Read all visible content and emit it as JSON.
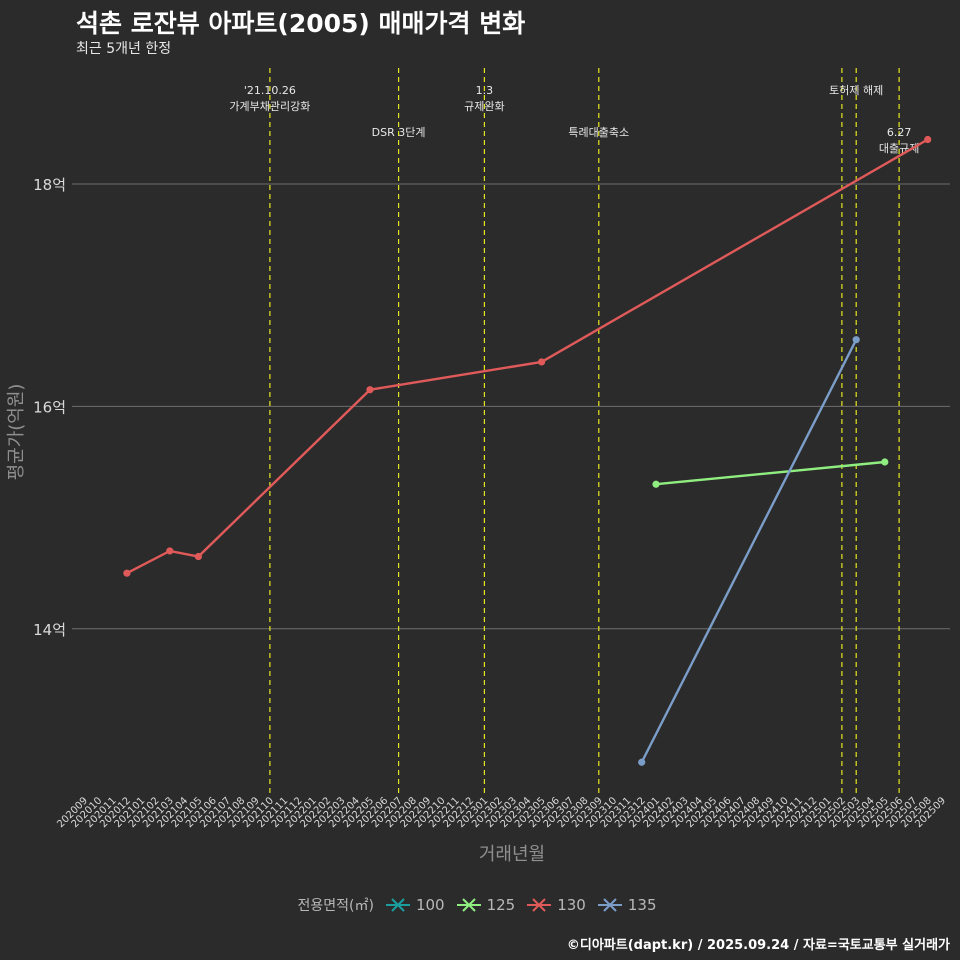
{
  "title": "석촌 로잔뷰 아파트(2005) 매매가격 변화",
  "subtitle": "최근 5개년 한정",
  "caption": "©디아파트(dapt.kr) / 2025.09.24 / 자료=국토교통부 실거래가",
  "legend": {
    "title": "전용면적(㎡)",
    "items": [
      {
        "label": "100",
        "color": "#1b9e9e"
      },
      {
        "label": "125",
        "color": "#90ee80"
      },
      {
        "label": "130",
        "color": "#e05a5a"
      },
      {
        "label": "135",
        "color": "#7b9ec9"
      }
    ]
  },
  "chart_data": {
    "type": "line",
    "xlabel": "거래년월",
    "ylabel": "평균가(억원)",
    "ylim": [
      12.6,
      19.2
    ],
    "yticks": [
      14,
      16,
      18
    ],
    "ytick_labels": [
      "14억",
      "16억",
      "18억"
    ],
    "x_categories": [
      "202009",
      "202010",
      "202011",
      "202012",
      "202101",
      "202102",
      "202103",
      "202104",
      "202105",
      "202106",
      "202107",
      "202108",
      "202109",
      "202110",
      "202111",
      "202112",
      "202201",
      "202202",
      "202203",
      "202204",
      "202205",
      "202206",
      "202207",
      "202208",
      "202209",
      "202210",
      "202211",
      "202212",
      "202301",
      "202302",
      "202303",
      "202304",
      "202305",
      "202306",
      "202307",
      "202308",
      "202309",
      "202310",
      "202311",
      "202312",
      "202401",
      "202402",
      "202403",
      "202404",
      "202405",
      "202406",
      "202407",
      "202408",
      "202409",
      "202410",
      "202411",
      "202412",
      "202501",
      "202502",
      "202503",
      "202504",
      "202505",
      "202506",
      "202507",
      "202508",
      "202509"
    ],
    "series": [
      {
        "name": "125",
        "color": "#90ee80",
        "points": [
          {
            "x": "202401",
            "y": 15.3
          },
          {
            "x": "202505",
            "y": 15.5
          }
        ]
      },
      {
        "name": "130",
        "color": "#e05a5a",
        "points": [
          {
            "x": "202012",
            "y": 14.5
          },
          {
            "x": "202103",
            "y": 14.7
          },
          {
            "x": "202105",
            "y": 14.65
          },
          {
            "x": "202205",
            "y": 16.15
          },
          {
            "x": "202305",
            "y": 16.4
          },
          {
            "x": "202508",
            "y": 18.4
          }
        ]
      },
      {
        "name": "135",
        "color": "#7b9ec9",
        "points": [
          {
            "x": "202312",
            "y": 12.8
          },
          {
            "x": "202503",
            "y": 16.6
          }
        ]
      }
    ],
    "events": [
      {
        "x": "202110",
        "lines": [
          "'21.10.26",
          "가계부채관리강화"
        ],
        "row": 1
      },
      {
        "x": "202207",
        "lines": [
          "DSR 3단계"
        ],
        "row": 2
      },
      {
        "x": "202301",
        "lines": [
          "1.3",
          "규제완화"
        ],
        "row": 1
      },
      {
        "x": "202309",
        "lines": [
          "특례대출축소"
        ],
        "row": 2
      },
      {
        "x": "202502",
        "lines": [
          ""
        ],
        "row": 0
      },
      {
        "x": "202503",
        "lines": [
          "토허제 해제"
        ],
        "row": 1
      },
      {
        "x": "202506",
        "lines": [
          "6.27",
          "대출규제"
        ],
        "row": 2
      }
    ]
  }
}
